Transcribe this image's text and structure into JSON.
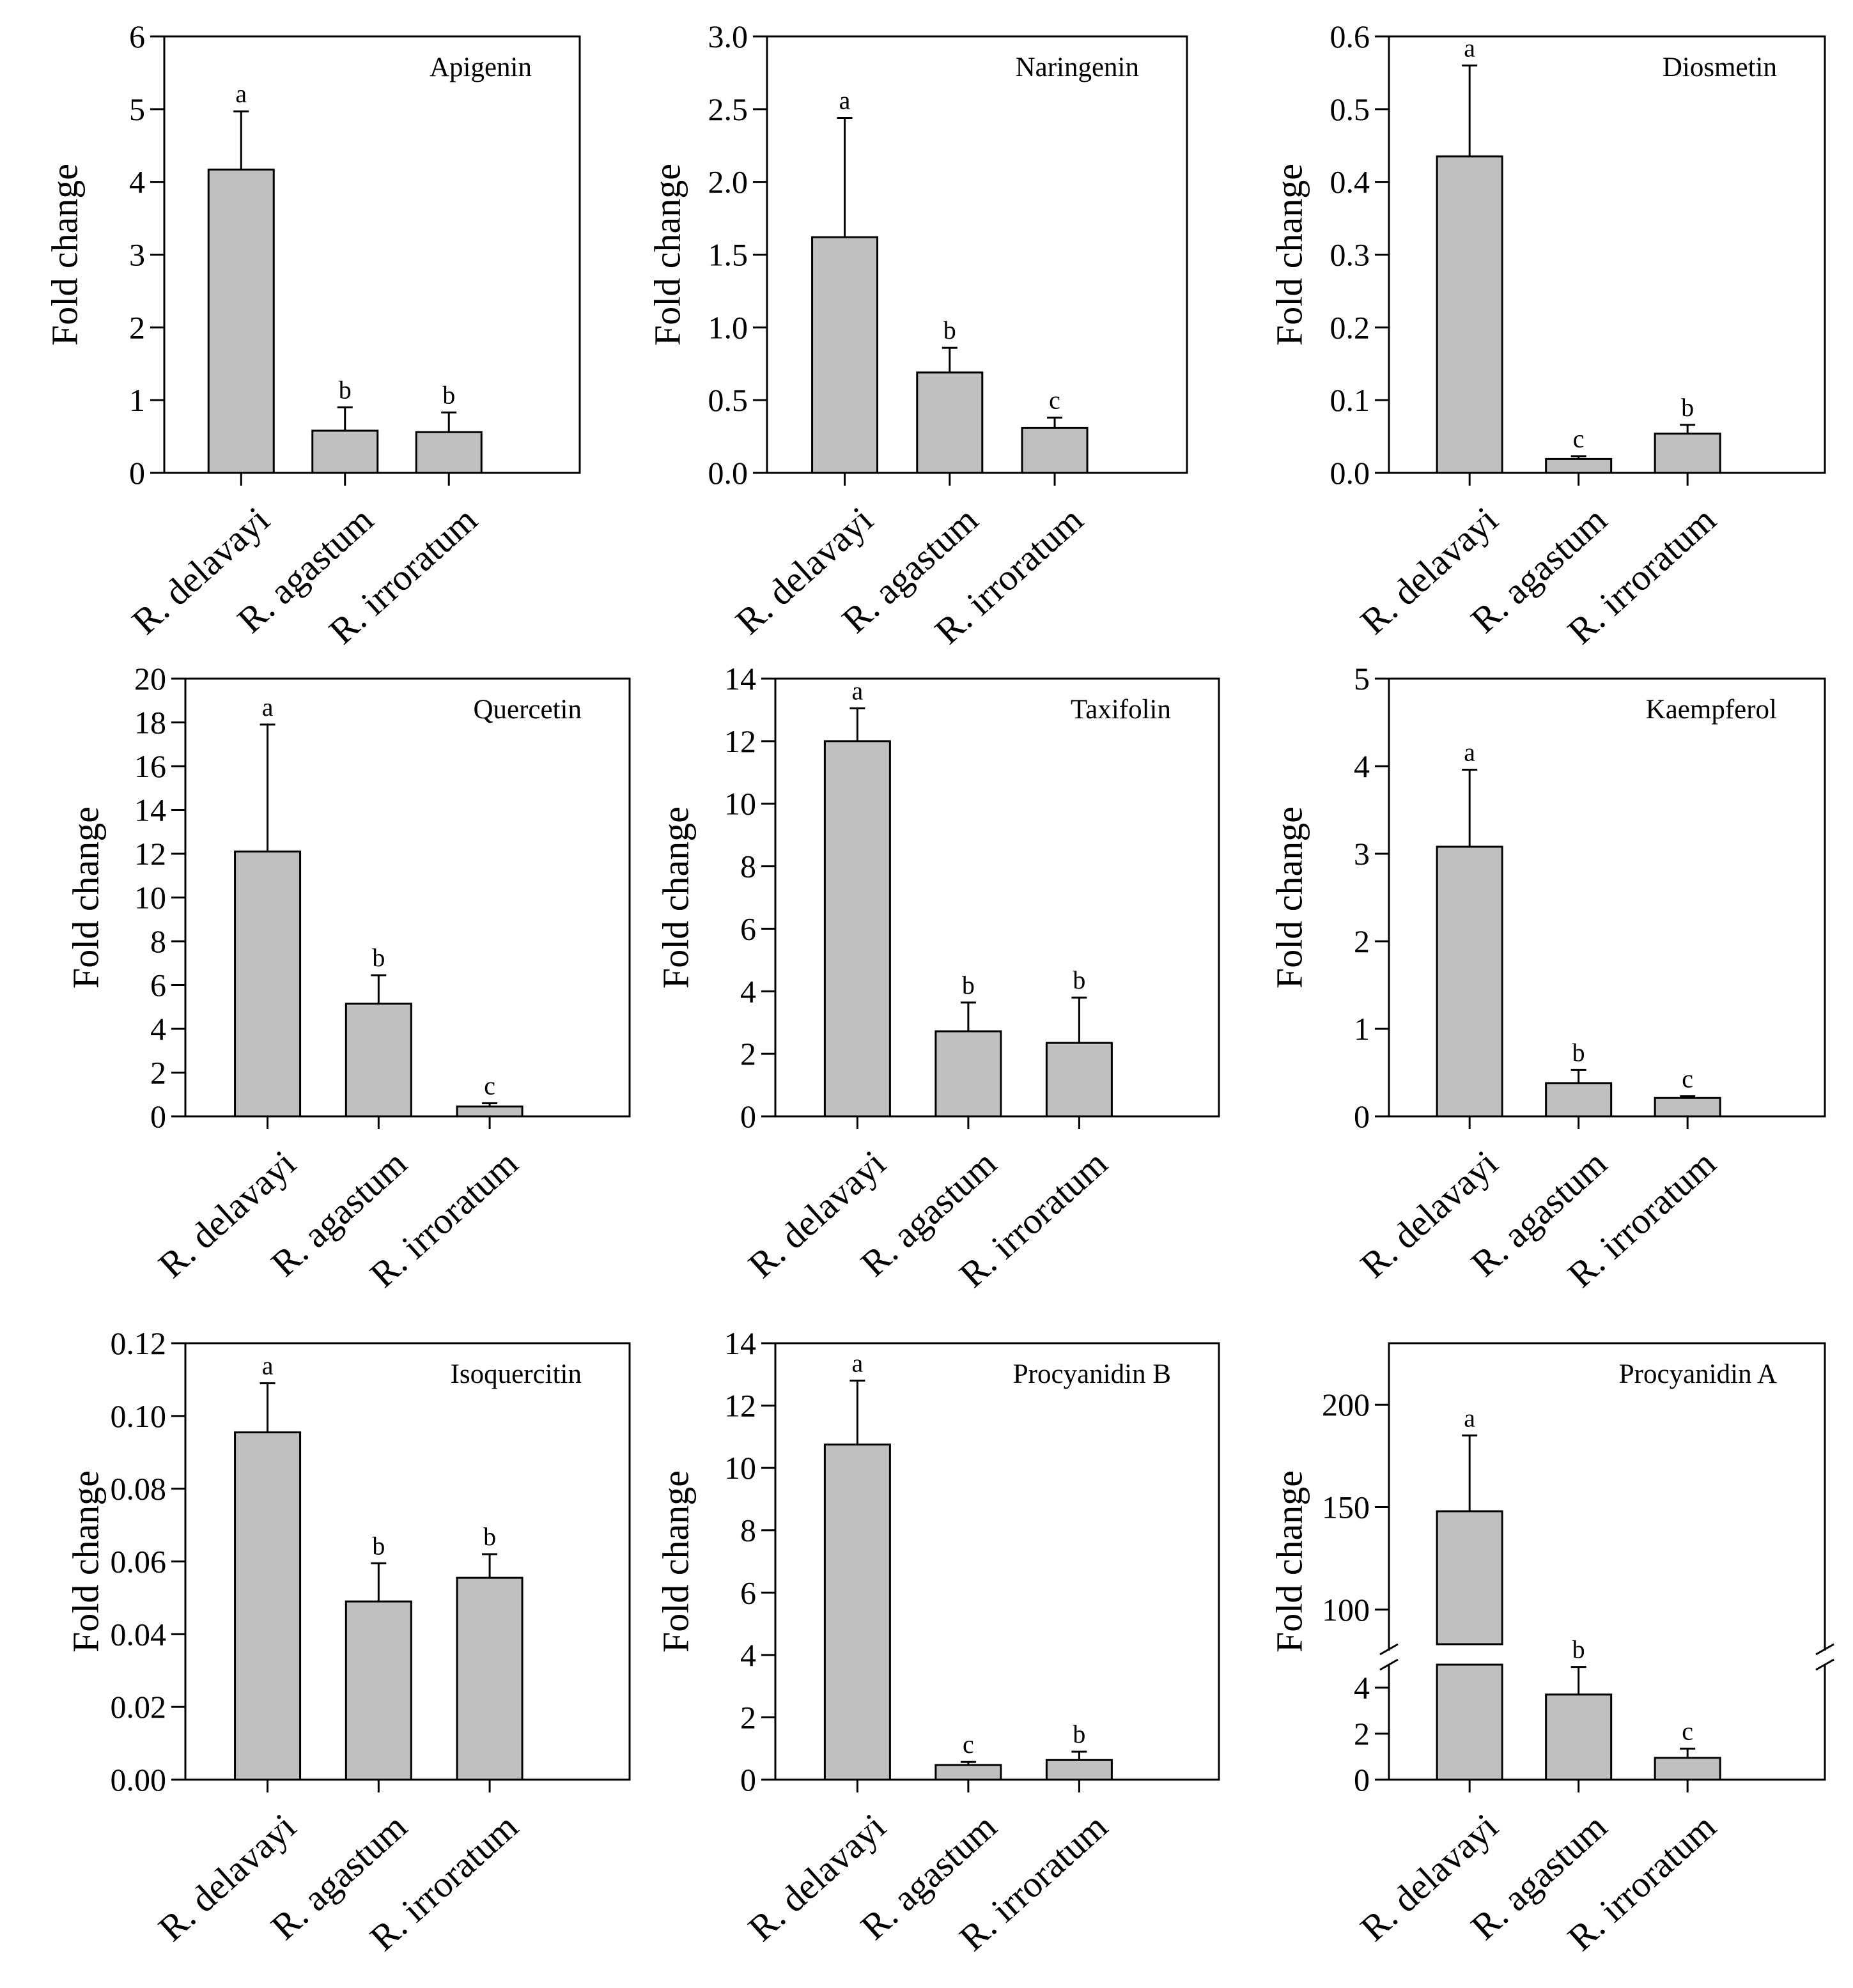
{
  "figure": {
    "y_axis_label": "Fold change",
    "categories": [
      "R. delavayi",
      "R. agastum",
      "R. irroratum"
    ],
    "bar_color": "#c0c0c0"
  },
  "chart_data": [
    {
      "type": "bar",
      "title": "Apigenin",
      "ylabel": "Fold change",
      "categories": [
        "R. delavayi",
        "R. agastum",
        "R. irroratum"
      ],
      "values": [
        4.17,
        0.58,
        0.56
      ],
      "errors": [
        0.8,
        0.32,
        0.27
      ],
      "letters": [
        "a",
        "b",
        "b"
      ],
      "ylim": [
        0,
        6
      ],
      "yticks": [
        0,
        1,
        2,
        3,
        4,
        5,
        6
      ],
      "ytick_labels": [
        "0",
        "1",
        "2",
        "3",
        "4",
        "5",
        "6"
      ]
    },
    {
      "type": "bar",
      "title": "Naringenin",
      "ylabel": "Fold change",
      "categories": [
        "R. delavayi",
        "R. agastum",
        "R. irroratum"
      ],
      "values": [
        1.62,
        0.69,
        0.31
      ],
      "errors": [
        0.82,
        0.17,
        0.07
      ],
      "letters": [
        "a",
        "b",
        "c"
      ],
      "ylim": [
        0,
        3
      ],
      "yticks": [
        0,
        0.5,
        1,
        1.5,
        2,
        2.5,
        3
      ],
      "ytick_labels": [
        "0.0",
        "0.5",
        "1.0",
        "1.5",
        "2.0",
        "2.5",
        "3.0"
      ]
    },
    {
      "type": "bar",
      "title": "Diosmetin",
      "ylabel": "Fold change",
      "categories": [
        "R. delavayi",
        "R. agastum",
        "R. irroratum"
      ],
      "values": [
        0.435,
        0.019,
        0.054
      ],
      "errors": [
        0.125,
        0.004,
        0.012
      ],
      "letters": [
        "a",
        "c",
        "b"
      ],
      "ylim": [
        0,
        0.6
      ],
      "yticks": [
        0,
        0.1,
        0.2,
        0.3,
        0.4,
        0.5,
        0.6
      ],
      "ytick_labels": [
        "0.0",
        "0.1",
        "0.2",
        "0.3",
        "0.4",
        "0.5",
        "0.6"
      ]
    },
    {
      "type": "bar",
      "title": "Quercetin",
      "ylabel": "Fold change",
      "categories": [
        "R. delavayi",
        "R. agastum",
        "R. irroratum"
      ],
      "values": [
        12.1,
        5.15,
        0.45
      ],
      "errors": [
        5.8,
        1.3,
        0.15
      ],
      "letters": [
        "a",
        "b",
        "c"
      ],
      "ylim": [
        0,
        20
      ],
      "yticks": [
        0,
        2,
        4,
        6,
        8,
        10,
        12,
        14,
        16,
        18,
        20
      ],
      "ytick_labels": [
        "0",
        "2",
        "4",
        "6",
        "8",
        "10",
        "12",
        "14",
        "16",
        "18",
        "20"
      ]
    },
    {
      "type": "bar",
      "title": "Taxifolin",
      "ylabel": "Fold change",
      "categories": [
        "R. delavayi",
        "R. agastum",
        "R. irroratum"
      ],
      "values": [
        12.0,
        2.72,
        2.35
      ],
      "errors": [
        1.05,
        0.92,
        1.45
      ],
      "letters": [
        "a",
        "b",
        "b"
      ],
      "ylim": [
        0,
        14
      ],
      "yticks": [
        0,
        2,
        4,
        6,
        8,
        10,
        12,
        14
      ],
      "ytick_labels": [
        "0",
        "2",
        "4",
        "6",
        "8",
        "10",
        "12",
        "14"
      ]
    },
    {
      "type": "bar",
      "title": "Kaempferol",
      "ylabel": "Fold change",
      "categories": [
        "R. delavayi",
        "R. agastum",
        "R. irroratum"
      ],
      "values": [
        3.08,
        0.38,
        0.21
      ],
      "errors": [
        0.88,
        0.15,
        0.02
      ],
      "letters": [
        "a",
        "b",
        "c"
      ],
      "ylim": [
        0,
        5
      ],
      "yticks": [
        0,
        1,
        2,
        3,
        4,
        5
      ],
      "ytick_labels": [
        "0",
        "1",
        "2",
        "3",
        "4",
        "5"
      ]
    },
    {
      "type": "bar",
      "title": "Isoquercitin",
      "ylabel": "Fold change",
      "categories": [
        "R. delavayi",
        "R. agastum",
        "R. irroratum"
      ],
      "values": [
        0.0955,
        0.049,
        0.0555
      ],
      "errors": [
        0.0135,
        0.0105,
        0.0065
      ],
      "letters": [
        "a",
        "b",
        "b"
      ],
      "ylim": [
        0,
        0.12
      ],
      "yticks": [
        0,
        0.02,
        0.04,
        0.06,
        0.08,
        0.1,
        0.12
      ],
      "ytick_labels": [
        "0.00",
        "0.02",
        "0.04",
        "0.06",
        "0.08",
        "0.10",
        "0.12"
      ]
    },
    {
      "type": "bar",
      "title": "Procyanidin B",
      "ylabel": "Fold change",
      "categories": [
        "R. delavayi",
        "R. agastum",
        "R. irroratum"
      ],
      "values": [
        10.75,
        0.47,
        0.63
      ],
      "errors": [
        2.05,
        0.1,
        0.27
      ],
      "letters": [
        "a",
        "c",
        "b"
      ],
      "ylim": [
        0,
        14
      ],
      "yticks": [
        0,
        2,
        4,
        6,
        8,
        10,
        12,
        14
      ],
      "ytick_labels": [
        "0",
        "2",
        "4",
        "6",
        "8",
        "10",
        "12",
        "14"
      ]
    },
    {
      "type": "bar",
      "title": "Procyanidin A",
      "ylabel": "Fold change",
      "categories": [
        "R. delavayi",
        "R. agastum",
        "R. irroratum"
      ],
      "values": [
        148,
        3.7,
        0.95
      ],
      "errors": [
        37,
        1.2,
        0.4
      ],
      "letters": [
        "a",
        "b",
        "c"
      ],
      "broken_axis": true,
      "lower_range": [
        0,
        5
      ],
      "upper_range": [
        80,
        230
      ],
      "lower_ticks": [
        0,
        2,
        4
      ],
      "lower_tick_labels": [
        "0",
        "2",
        "4"
      ],
      "upper_ticks": [
        100,
        150,
        200
      ],
      "upper_tick_labels": [
        "100",
        "150",
        "200"
      ]
    }
  ]
}
